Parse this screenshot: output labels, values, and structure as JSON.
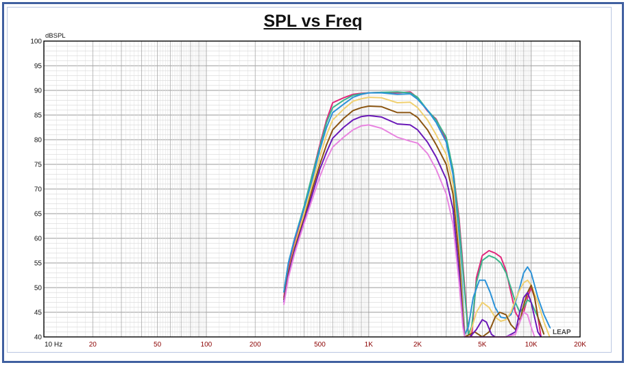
{
  "chart_data": {
    "type": "line",
    "title": "SPL vs Freq",
    "ylabel": "dBSPL",
    "xlabel": "",
    "x_scale": "log",
    "xlim": [
      10,
      20000
    ],
    "ylim": [
      40,
      100
    ],
    "grid": true,
    "y_ticks": [
      "100",
      "95",
      "90",
      "85",
      "80",
      "75",
      "70",
      "65",
      "60",
      "55",
      "50",
      "45",
      "40"
    ],
    "x_ticks": [
      {
        "v": 10,
        "label": "10  Hz"
      },
      {
        "v": 20,
        "label": "20"
      },
      {
        "v": 50,
        "label": "50"
      },
      {
        "v": 100,
        "label": "100"
      },
      {
        "v": 200,
        "label": "200"
      },
      {
        "v": 500,
        "label": "500"
      },
      {
        "v": 1000,
        "label": "1K"
      },
      {
        "v": 2000,
        "label": "2K"
      },
      {
        "v": 5000,
        "label": "5K"
      },
      {
        "v": 10000,
        "label": "10K"
      },
      {
        "v": 20000,
        "label": "20K"
      }
    ],
    "watermark": "LEAP",
    "series": [
      {
        "color": "#e0267a",
        "points": [
          [
            300,
            48
          ],
          [
            320,
            54
          ],
          [
            350,
            59
          ],
          [
            400,
            66
          ],
          [
            450,
            73
          ],
          [
            500,
            79
          ],
          [
            550,
            84
          ],
          [
            600,
            87.5
          ],
          [
            700,
            88.5
          ],
          [
            800,
            89.2
          ],
          [
            900,
            89.4
          ],
          [
            1000,
            89.5
          ],
          [
            1200,
            89.6
          ],
          [
            1500,
            89.5
          ],
          [
            1800,
            89.7
          ],
          [
            2000,
            88.5
          ],
          [
            2300,
            85.8
          ],
          [
            2600,
            84.2
          ],
          [
            3000,
            80
          ],
          [
            3300,
            74
          ],
          [
            3600,
            64
          ],
          [
            3900,
            50
          ],
          [
            4100,
            41
          ],
          [
            4300,
            40
          ],
          [
            4600,
            52
          ],
          [
            5000,
            56.5
          ],
          [
            5500,
            57.5
          ],
          [
            6000,
            57
          ],
          [
            6500,
            56.2
          ],
          [
            7000,
            53.5
          ],
          [
            7500,
            49
          ],
          [
            8000,
            45
          ],
          [
            8500,
            43.5
          ],
          [
            9000,
            45
          ],
          [
            9500,
            48
          ],
          [
            10000,
            50
          ],
          [
            10500,
            48
          ],
          [
            11000,
            44
          ],
          [
            11500,
            40
          ]
        ]
      },
      {
        "color": "#3ab58a",
        "points": [
          [
            300,
            49
          ],
          [
            320,
            55
          ],
          [
            350,
            60
          ],
          [
            400,
            66.5
          ],
          [
            450,
            73
          ],
          [
            500,
            78.5
          ],
          [
            550,
            83.5
          ],
          [
            600,
            86.5
          ],
          [
            700,
            88
          ],
          [
            800,
            89
          ],
          [
            900,
            89.3
          ],
          [
            1000,
            89.5
          ],
          [
            1200,
            89.6
          ],
          [
            1500,
            89.7
          ],
          [
            1800,
            89.5
          ],
          [
            2000,
            88.6
          ],
          [
            2300,
            86
          ],
          [
            2600,
            84
          ],
          [
            3000,
            80.5
          ],
          [
            3300,
            74
          ],
          [
            3600,
            63
          ],
          [
            3900,
            49
          ],
          [
            4100,
            40.5
          ],
          [
            4300,
            42
          ],
          [
            4600,
            51
          ],
          [
            5000,
            55.5
          ],
          [
            5500,
            56.5
          ],
          [
            6000,
            56
          ],
          [
            6500,
            55
          ],
          [
            7000,
            53
          ],
          [
            7500,
            50
          ],
          [
            8000,
            47
          ],
          [
            8500,
            45
          ],
          [
            9000,
            46
          ],
          [
            9500,
            47.5
          ],
          [
            10000,
            47
          ],
          [
            11000,
            44
          ],
          [
            12000,
            40.5
          ]
        ]
      },
      {
        "color": "#2a92d8",
        "points": [
          [
            300,
            49
          ],
          [
            320,
            55
          ],
          [
            350,
            60
          ],
          [
            400,
            66
          ],
          [
            450,
            72
          ],
          [
            500,
            78
          ],
          [
            550,
            82.5
          ],
          [
            600,
            85.5
          ],
          [
            700,
            87.2
          ],
          [
            800,
            88.6
          ],
          [
            900,
            89.2
          ],
          [
            1000,
            89.5
          ],
          [
            1200,
            89.5
          ],
          [
            1500,
            89.2
          ],
          [
            1800,
            89.3
          ],
          [
            2000,
            88.2
          ],
          [
            2300,
            86
          ],
          [
            2600,
            83.5
          ],
          [
            3000,
            79.5
          ],
          [
            3300,
            73
          ],
          [
            3600,
            60
          ],
          [
            3800,
            48
          ],
          [
            3900,
            40.5
          ],
          [
            4100,
            42
          ],
          [
            4400,
            48
          ],
          [
            4800,
            51.5
          ],
          [
            5200,
            51.5
          ],
          [
            5600,
            49
          ],
          [
            6000,
            46
          ],
          [
            6500,
            44
          ],
          [
            7000,
            43.8
          ],
          [
            7500,
            44.5
          ],
          [
            8000,
            47
          ],
          [
            8500,
            50
          ],
          [
            9000,
            53
          ],
          [
            9500,
            54.2
          ],
          [
            10000,
            53
          ],
          [
            11000,
            48
          ],
          [
            12000,
            44.5
          ],
          [
            13000,
            42
          ],
          [
            14000,
            41
          ],
          [
            15000,
            40.5
          ]
        ]
      },
      {
        "color": "#f0d070",
        "points": [
          [
            300,
            47.5
          ],
          [
            320,
            53
          ],
          [
            350,
            58.5
          ],
          [
            400,
            65
          ],
          [
            450,
            71
          ],
          [
            500,
            76.5
          ],
          [
            550,
            81
          ],
          [
            600,
            84
          ],
          [
            700,
            86.2
          ],
          [
            800,
            87.8
          ],
          [
            900,
            88.3
          ],
          [
            1000,
            88.6
          ],
          [
            1200,
            88.5
          ],
          [
            1500,
            87.5
          ],
          [
            1800,
            87.6
          ],
          [
            2000,
            86.5
          ],
          [
            2300,
            84
          ],
          [
            2600,
            81
          ],
          [
            3000,
            77
          ],
          [
            3300,
            71
          ],
          [
            3600,
            58
          ],
          [
            3800,
            46
          ],
          [
            3900,
            40
          ],
          [
            4200,
            40.5
          ],
          [
            4600,
            45
          ],
          [
            5000,
            47
          ],
          [
            5500,
            46
          ],
          [
            6000,
            44
          ],
          [
            6500,
            43.2
          ],
          [
            7000,
            43.5
          ],
          [
            7500,
            45
          ],
          [
            8000,
            47.5
          ],
          [
            8500,
            49.5
          ],
          [
            9000,
            51
          ],
          [
            9500,
            51.5
          ],
          [
            10000,
            50.5
          ],
          [
            11000,
            47
          ],
          [
            12000,
            43
          ],
          [
            13000,
            40
          ]
        ]
      },
      {
        "color": "#8a5410",
        "points": [
          [
            300,
            47.5
          ],
          [
            320,
            53
          ],
          [
            350,
            58
          ],
          [
            400,
            64
          ],
          [
            450,
            70
          ],
          [
            500,
            75
          ],
          [
            550,
            79
          ],
          [
            600,
            82
          ],
          [
            700,
            84.3
          ],
          [
            800,
            85.9
          ],
          [
            900,
            86.5
          ],
          [
            1000,
            86.8
          ],
          [
            1200,
            86.7
          ],
          [
            1500,
            85.5
          ],
          [
            1800,
            85.5
          ],
          [
            2000,
            84.5
          ],
          [
            2300,
            82
          ],
          [
            2600,
            79
          ],
          [
            3000,
            75
          ],
          [
            3300,
            69
          ],
          [
            3600,
            56
          ],
          [
            3800,
            44
          ],
          [
            3900,
            40
          ],
          [
            4500,
            41
          ],
          [
            5000,
            40
          ],
          [
            5500,
            41
          ],
          [
            6000,
            44
          ],
          [
            6400,
            45
          ],
          [
            7000,
            44.5
          ],
          [
            7500,
            42.5
          ],
          [
            8000,
            41.5
          ],
          [
            8500,
            43
          ],
          [
            9000,
            46.5
          ],
          [
            9500,
            49
          ],
          [
            10000,
            50.5
          ],
          [
            10500,
            48
          ],
          [
            11000,
            44
          ],
          [
            12000,
            40.5
          ]
        ]
      },
      {
        "color": "#6a18b8",
        "points": [
          [
            300,
            47
          ],
          [
            320,
            52.5
          ],
          [
            350,
            57.5
          ],
          [
            400,
            63.5
          ],
          [
            450,
            69
          ],
          [
            500,
            74
          ],
          [
            550,
            77.5
          ],
          [
            600,
            80.3
          ],
          [
            700,
            82.5
          ],
          [
            800,
            84
          ],
          [
            900,
            84.7
          ],
          [
            1000,
            84.9
          ],
          [
            1200,
            84.6
          ],
          [
            1500,
            83.2
          ],
          [
            1800,
            83
          ],
          [
            2000,
            82
          ],
          [
            2300,
            79.5
          ],
          [
            2600,
            76.5
          ],
          [
            3000,
            72
          ],
          [
            3300,
            66
          ],
          [
            3600,
            53
          ],
          [
            3800,
            43
          ],
          [
            3900,
            40
          ],
          [
            4200,
            40
          ],
          [
            4600,
            41.5
          ],
          [
            5000,
            43.5
          ],
          [
            5300,
            43
          ],
          [
            5700,
            40.5
          ],
          [
            6000,
            40
          ],
          [
            7000,
            40
          ],
          [
            8000,
            41
          ],
          [
            8500,
            45
          ],
          [
            9000,
            48
          ],
          [
            9500,
            49
          ],
          [
            10000,
            47
          ],
          [
            11000,
            41
          ],
          [
            11500,
            40
          ]
        ]
      },
      {
        "color": "#e884e0",
        "points": [
          [
            300,
            46.5
          ],
          [
            320,
            52
          ],
          [
            350,
            57
          ],
          [
            400,
            63
          ],
          [
            450,
            68
          ],
          [
            500,
            72.5
          ],
          [
            550,
            76
          ],
          [
            600,
            78.5
          ],
          [
            700,
            80.5
          ],
          [
            800,
            82
          ],
          [
            900,
            82.8
          ],
          [
            1000,
            83
          ],
          [
            1200,
            82.3
          ],
          [
            1500,
            80.5
          ],
          [
            1800,
            79.7
          ],
          [
            2000,
            79.3
          ],
          [
            2300,
            77.2
          ],
          [
            2600,
            74
          ],
          [
            3000,
            69
          ],
          [
            3300,
            63
          ],
          [
            3600,
            51
          ],
          [
            3800,
            42
          ],
          [
            3900,
            40
          ],
          [
            4500,
            40
          ],
          [
            5500,
            40
          ],
          [
            7000,
            40
          ],
          [
            8000,
            40.5
          ],
          [
            8500,
            43
          ],
          [
            9000,
            45
          ],
          [
            9500,
            44.5
          ],
          [
            10000,
            42
          ],
          [
            10500,
            40
          ]
        ]
      }
    ]
  }
}
